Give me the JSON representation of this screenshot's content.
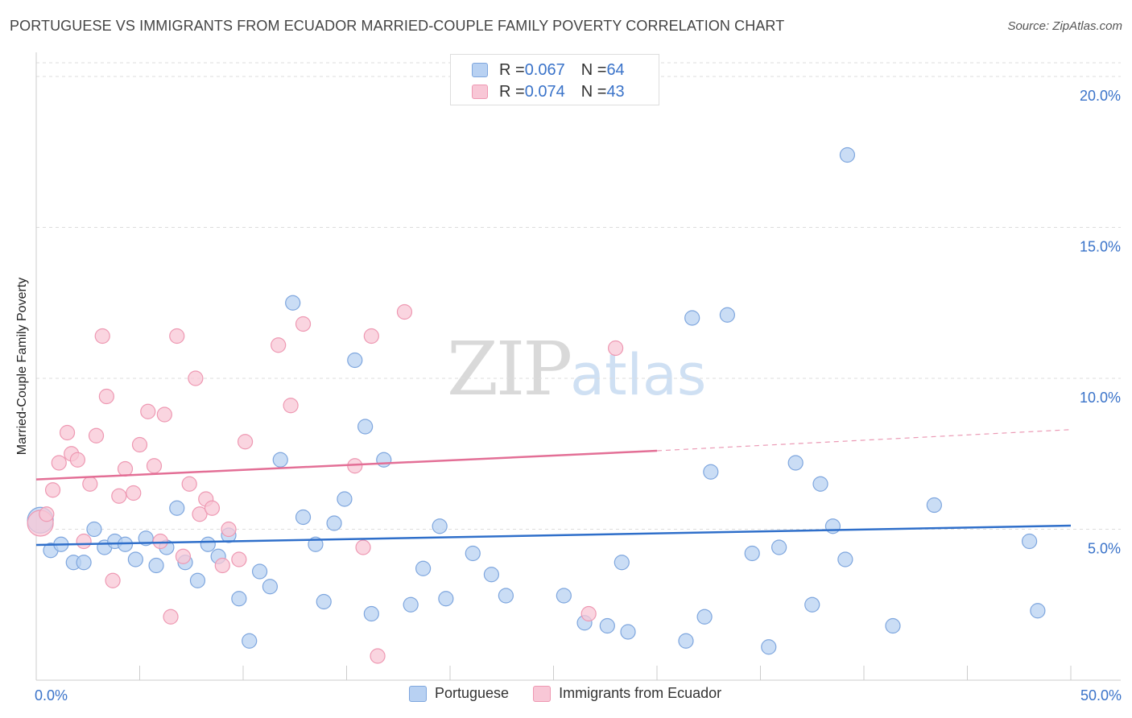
{
  "header": {
    "title": "PORTUGUESE VS IMMIGRANTS FROM ECUADOR MARRIED-COUPLE FAMILY POVERTY CORRELATION CHART",
    "source": "Source: ZipAtlas.com"
  },
  "watermark": {
    "part1": "ZIP",
    "part2": "atlas"
  },
  "legend_top": {
    "rows": [
      {
        "r_label": "R = ",
        "r_value": "0.067",
        "n_label": "N = ",
        "n_value": "64"
      },
      {
        "r_label": "R = ",
        "r_value": "0.074",
        "n_label": "N = ",
        "n_value": "43"
      }
    ]
  },
  "legend_bottom": {
    "series1": "Portuguese",
    "series2": "Immigrants from Ecuador"
  },
  "colors": {
    "blue_fill": "#b8d1f2",
    "blue_stroke": "#7ea6de",
    "blue_line": "#2f6fca",
    "pink_fill": "#f8c7d6",
    "pink_stroke": "#ee98b2",
    "pink_line": "#e36f96",
    "tick_text": "#3a73c9",
    "grid": "#dddddd"
  },
  "chart_data": {
    "type": "scatter",
    "title": "PORTUGUESE VS IMMIGRANTS FROM ECUADOR MARRIED-COUPLE FAMILY POVERTY CORRELATION CHART",
    "xlabel": "",
    "ylabel": "Married-Couple Family Poverty",
    "xlim": [
      0,
      50
    ],
    "ylim": [
      0,
      20.8
    ],
    "x_tick_labels": [
      "0.0%",
      "50.0%"
    ],
    "y_ticks": [
      5,
      10,
      15,
      20
    ],
    "y_tick_labels": [
      "5.0%",
      "10.0%",
      "15.0%",
      "20.0%"
    ],
    "grid": true,
    "legend_position": "top-center",
    "series": [
      {
        "name": "Portuguese",
        "color": "#b8d1f2",
        "trend": {
          "x": [
            0,
            50
          ],
          "y": [
            4.48,
            5.12
          ],
          "style": "solid"
        },
        "points": [
          [
            0.2,
            5.3
          ],
          [
            0.7,
            4.3
          ],
          [
            1.2,
            4.5
          ],
          [
            1.8,
            3.9
          ],
          [
            2.3,
            3.9
          ],
          [
            2.8,
            5.0
          ],
          [
            3.3,
            4.4
          ],
          [
            3.8,
            4.6
          ],
          [
            4.3,
            4.5
          ],
          [
            4.8,
            4.0
          ],
          [
            5.3,
            4.7
          ],
          [
            5.8,
            3.8
          ],
          [
            6.3,
            4.4
          ],
          [
            6.8,
            5.7
          ],
          [
            7.2,
            3.9
          ],
          [
            7.8,
            3.3
          ],
          [
            8.3,
            4.5
          ],
          [
            8.8,
            4.1
          ],
          [
            9.3,
            4.8
          ],
          [
            9.8,
            2.7
          ],
          [
            10.3,
            1.3
          ],
          [
            10.8,
            3.6
          ],
          [
            11.3,
            3.1
          ],
          [
            11.8,
            7.3
          ],
          [
            12.4,
            12.5
          ],
          [
            12.9,
            5.4
          ],
          [
            13.5,
            4.5
          ],
          [
            13.9,
            2.6
          ],
          [
            14.4,
            5.2
          ],
          [
            14.9,
            6.0
          ],
          [
            15.4,
            10.6
          ],
          [
            15.9,
            8.4
          ],
          [
            16.2,
            2.2
          ],
          [
            16.8,
            7.3
          ],
          [
            18.1,
            2.5
          ],
          [
            18.7,
            3.7
          ],
          [
            19.5,
            5.1
          ],
          [
            19.8,
            2.7
          ],
          [
            21.1,
            4.2
          ],
          [
            22.0,
            3.5
          ],
          [
            22.7,
            2.8
          ],
          [
            25.5,
            2.8
          ],
          [
            26.5,
            1.9
          ],
          [
            27.6,
            1.8
          ],
          [
            28.3,
            3.9
          ],
          [
            28.6,
            1.6
          ],
          [
            31.4,
            1.3
          ],
          [
            31.7,
            12.0
          ],
          [
            32.3,
            2.1
          ],
          [
            32.6,
            6.9
          ],
          [
            33.4,
            12.1
          ],
          [
            34.6,
            4.2
          ],
          [
            35.4,
            1.1
          ],
          [
            35.9,
            4.4
          ],
          [
            36.7,
            7.2
          ],
          [
            37.5,
            2.5
          ],
          [
            37.9,
            6.5
          ],
          [
            38.5,
            5.1
          ],
          [
            39.1,
            4.0
          ],
          [
            39.2,
            17.4
          ],
          [
            41.4,
            1.8
          ],
          [
            43.4,
            5.8
          ],
          [
            48.0,
            4.6
          ],
          [
            48.4,
            2.3
          ]
        ]
      },
      {
        "name": "Immigrants from Ecuador",
        "color": "#f8c7d6",
        "trend": {
          "x": [
            0,
            30
          ],
          "y": [
            6.65,
            7.6
          ],
          "style": "solid",
          "dashed_extension": {
            "x": [
              30,
              50
            ],
            "y": [
              7.6,
              8.3
            ]
          }
        },
        "points": [
          [
            0.2,
            5.2
          ],
          [
            0.5,
            5.5
          ],
          [
            0.8,
            6.3
          ],
          [
            1.1,
            7.2
          ],
          [
            1.5,
            8.2
          ],
          [
            1.7,
            7.5
          ],
          [
            2.0,
            7.3
          ],
          [
            2.3,
            4.6
          ],
          [
            2.6,
            6.5
          ],
          [
            2.9,
            8.1
          ],
          [
            3.2,
            11.4
          ],
          [
            3.4,
            9.4
          ],
          [
            3.7,
            3.3
          ],
          [
            4.0,
            6.1
          ],
          [
            4.3,
            7.0
          ],
          [
            4.7,
            6.2
          ],
          [
            5.0,
            7.8
          ],
          [
            5.4,
            8.9
          ],
          [
            5.7,
            7.1
          ],
          [
            6.0,
            4.6
          ],
          [
            6.2,
            8.8
          ],
          [
            6.5,
            2.1
          ],
          [
            6.8,
            11.4
          ],
          [
            7.1,
            4.1
          ],
          [
            7.4,
            6.5
          ],
          [
            7.7,
            10.0
          ],
          [
            7.9,
            5.5
          ],
          [
            8.2,
            6.0
          ],
          [
            8.5,
            5.7
          ],
          [
            9.0,
            3.8
          ],
          [
            9.3,
            5.0
          ],
          [
            9.8,
            4.0
          ],
          [
            10.1,
            7.9
          ],
          [
            11.7,
            11.1
          ],
          [
            12.3,
            9.1
          ],
          [
            12.9,
            11.8
          ],
          [
            15.4,
            7.1
          ],
          [
            15.8,
            4.4
          ],
          [
            16.2,
            11.4
          ],
          [
            16.5,
            0.8
          ],
          [
            17.8,
            12.2
          ],
          [
            26.7,
            2.2
          ],
          [
            28.0,
            11.0
          ]
        ]
      }
    ]
  }
}
